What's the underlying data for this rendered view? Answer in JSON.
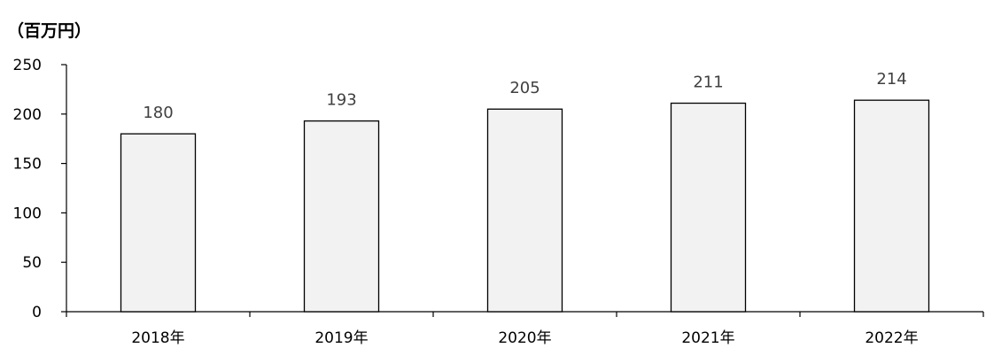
{
  "chart_data": {
    "type": "bar",
    "categories": [
      "2018年",
      "2019年",
      "2020年",
      "2021年",
      "2022年"
    ],
    "values": [
      180,
      193,
      205,
      211,
      214
    ],
    "data_labels": [
      "180",
      "193",
      "205",
      "211",
      "214"
    ],
    "ylabel": "（百万円）",
    "ylim": [
      0,
      250
    ],
    "yticks": [
      0,
      50,
      100,
      150,
      200,
      250
    ],
    "ytick_labels": [
      "0",
      "50",
      "100",
      "150",
      "200",
      "250"
    ],
    "grid": false,
    "bar_fill": "#f2f2f2",
    "bar_stroke": "#000000",
    "label_color": "#404040"
  }
}
